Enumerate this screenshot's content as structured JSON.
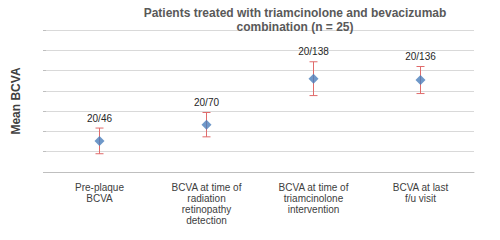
{
  "chart_data": {
    "type": "scatter",
    "title": "Patients treated with triamcinolone and bevacizumab\ncombination (n = 25)",
    "y_label": "Mean BCVA",
    "categories": [
      "Pre-plaque\nBCVA",
      "BCVA at time of\nradiation\nretinopathy\ndetection",
      "BCVA at time of\ntriamcinolone\nintervention",
      "BCVA at last\nf/u visit"
    ],
    "values": [
      46,
      70,
      138,
      136
    ],
    "value_labels": [
      "20/46",
      "20/70",
      "20/138",
      "20/136"
    ],
    "errors": [
      19,
      18,
      25,
      20
    ],
    "color": "#4a7ebb",
    "marker": "diamond",
    "ylim": [
      0,
      210
    ],
    "yticks": [
      0,
      30,
      60,
      90,
      120,
      150,
      180,
      210
    ],
    "grid": true,
    "data_labels": true,
    "tick_labels": "x"
  }
}
